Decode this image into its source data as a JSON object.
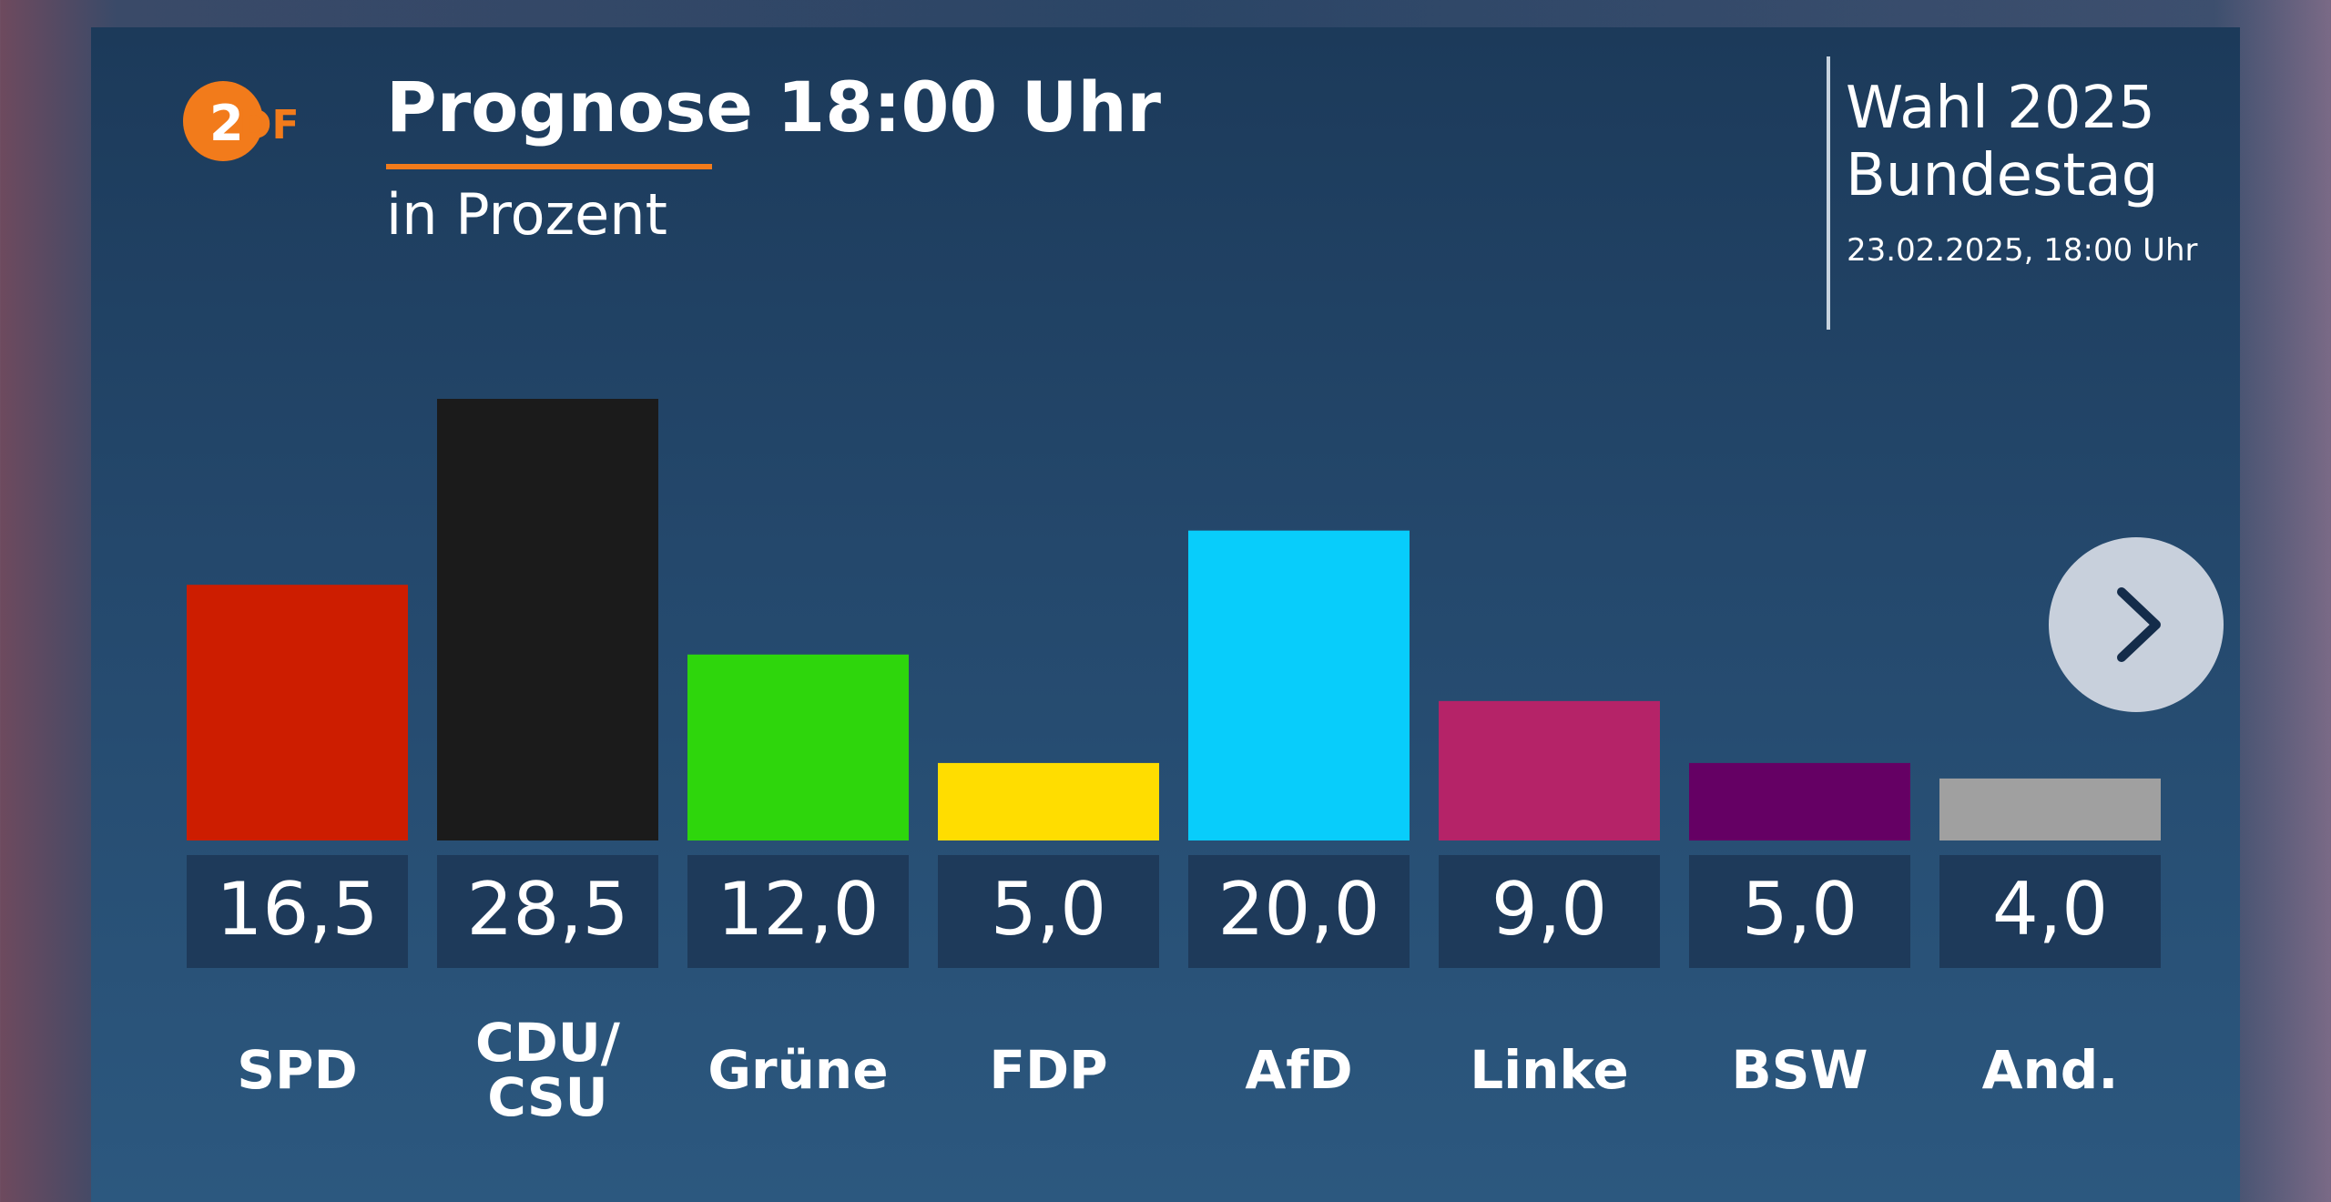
{
  "header": {
    "logo_text": "ZDF",
    "title": "Prognose 18:00 Uhr",
    "subtitle": "in Prozent",
    "election_line1": "Wahl 2025",
    "election_line2": "Bundestag",
    "datetime": "23.02.2025, 18:00 Uhr"
  },
  "colors": {
    "logo_orange": "#f27b1b",
    "label_box": "#1e3a5a"
  },
  "next_button": {
    "icon": "chevron-right-icon"
  },
  "source_text": "",
  "chart_data": {
    "type": "bar",
    "title": "Prognose 18:00 Uhr",
    "subtitle": "in Prozent",
    "xlabel": "",
    "ylabel": "",
    "ylim": [
      0,
      28.5
    ],
    "grid": false,
    "categories": [
      [
        "SPD"
      ],
      [
        "CDU/",
        "CSU"
      ],
      [
        "Grüne"
      ],
      [
        "FDP"
      ],
      [
        "AfD"
      ],
      [
        "Linke"
      ],
      [
        "BSW"
      ],
      [
        "And."
      ]
    ],
    "values": [
      16.5,
      28.5,
      12.0,
      5.0,
      20.0,
      9.0,
      5.0,
      4.0
    ],
    "value_labels": [
      "16,5",
      "28,5",
      "12,0",
      "5,0",
      "20,0",
      "9,0",
      "5,0",
      "4,0"
    ],
    "colors": [
      "#cd1d00",
      "#1b1b1b",
      "#2ed60c",
      "#ffdd00",
      "#08cdfb",
      "#b52368",
      "#650064",
      "#a0a0a0"
    ]
  }
}
